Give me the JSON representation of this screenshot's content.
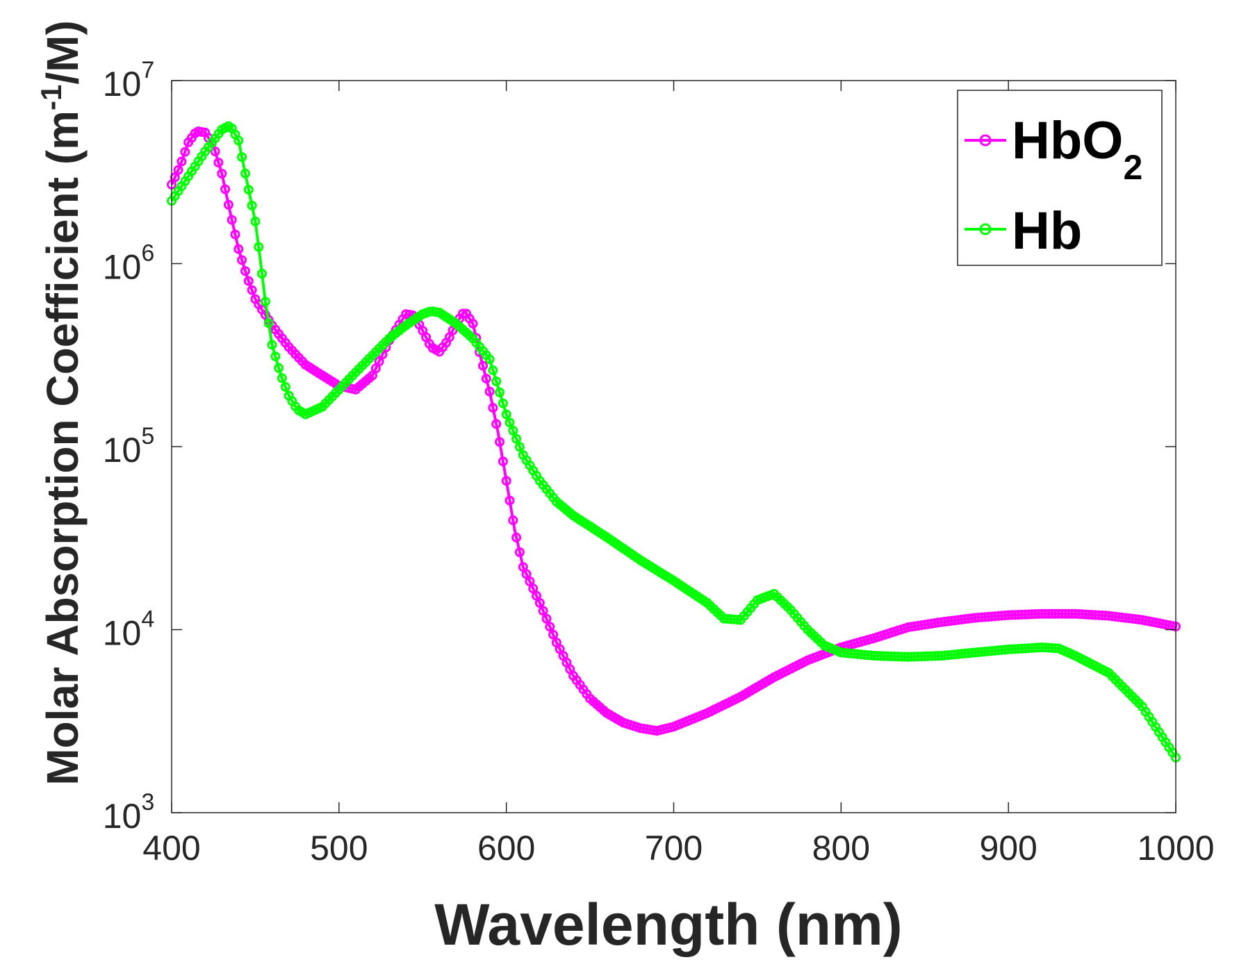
{
  "chart_data": {
    "type": "line",
    "title": "",
    "xlabel": "Wavelength (nm)",
    "ylabel": "Molar Absorption Coefficient (m-1/M)",
    "ylabel_parts": {
      "prefix": "Molar Absorption Coefficient (m",
      "superscript": "-1",
      "suffix": "/M)"
    },
    "x_scale": "linear",
    "y_scale": "log",
    "xlim": [
      400,
      1000
    ],
    "ylim": [
      1000,
      10000000
    ],
    "x_ticks": [
      400,
      500,
      600,
      700,
      800,
      900,
      1000
    ],
    "x_tick_labels": [
      "400",
      "500",
      "600",
      "700",
      "800",
      "900",
      "1000"
    ],
    "y_ticks": [
      1000,
      10000,
      100000,
      1000000,
      10000000
    ],
    "y_tick_labels": [
      {
        "base": "10",
        "exp": "3"
      },
      {
        "base": "10",
        "exp": "4"
      },
      {
        "base": "10",
        "exp": "5"
      },
      {
        "base": "10",
        "exp": "6"
      },
      {
        "base": "10",
        "exp": "7"
      }
    ],
    "grid": false,
    "legend_position": "top-right",
    "series": [
      {
        "name": "HbO2",
        "legend": {
          "main": "HbO",
          "subscript": "2"
        },
        "color": "#ff00ff",
        "marker": "circle",
        "points": [
          [
            400,
            2700000
          ],
          [
            405,
            3400000
          ],
          [
            410,
            4600000
          ],
          [
            415,
            5300000
          ],
          [
            420,
            5200000
          ],
          [
            425,
            4400000
          ],
          [
            430,
            3100000
          ],
          [
            435,
            1900000
          ],
          [
            440,
            1200000
          ],
          [
            445,
            850000
          ],
          [
            450,
            640000
          ],
          [
            460,
            460000
          ],
          [
            470,
            350000
          ],
          [
            480,
            280000
          ],
          [
            490,
            245000
          ],
          [
            500,
            215000
          ],
          [
            510,
            205000
          ],
          [
            520,
            245000
          ],
          [
            530,
            380000
          ],
          [
            540,
            530000
          ],
          [
            545,
            520000
          ],
          [
            550,
            430000
          ],
          [
            555,
            350000
          ],
          [
            560,
            330000
          ],
          [
            565,
            380000
          ],
          [
            570,
            470000
          ],
          [
            575,
            550000
          ],
          [
            580,
            470000
          ],
          [
            585,
            300000
          ],
          [
            590,
            200000
          ],
          [
            595,
            120000
          ],
          [
            600,
            65000
          ],
          [
            605,
            35000
          ],
          [
            610,
            22000
          ],
          [
            620,
            14000
          ],
          [
            630,
            8500
          ],
          [
            640,
            5600
          ],
          [
            650,
            4200
          ],
          [
            660,
            3500
          ],
          [
            670,
            3100
          ],
          [
            680,
            2900
          ],
          [
            690,
            2800
          ],
          [
            700,
            2950
          ],
          [
            720,
            3500
          ],
          [
            740,
            4300
          ],
          [
            760,
            5500
          ],
          [
            780,
            6800
          ],
          [
            800,
            8000
          ],
          [
            820,
            9000
          ],
          [
            840,
            10300
          ],
          [
            860,
            11000
          ],
          [
            880,
            11600
          ],
          [
            900,
            12000
          ],
          [
            920,
            12200
          ],
          [
            940,
            12200
          ],
          [
            960,
            11900
          ],
          [
            980,
            11300
          ],
          [
            1000,
            10400
          ]
        ]
      },
      {
        "name": "Hb",
        "legend": {
          "main": "Hb",
          "subscript": ""
        },
        "color": "#00ff00",
        "marker": "circle",
        "points": [
          [
            400,
            2200000
          ],
          [
            410,
            3000000
          ],
          [
            420,
            4100000
          ],
          [
            430,
            5400000
          ],
          [
            435,
            5700000
          ],
          [
            440,
            4700000
          ],
          [
            445,
            2800000
          ],
          [
            450,
            1700000
          ],
          [
            453,
            1050000
          ],
          [
            456,
            620000
          ],
          [
            460,
            360000
          ],
          [
            465,
            250000
          ],
          [
            470,
            190000
          ],
          [
            475,
            160000
          ],
          [
            480,
            150000
          ],
          [
            490,
            165000
          ],
          [
            500,
            205000
          ],
          [
            510,
            255000
          ],
          [
            520,
            315000
          ],
          [
            530,
            390000
          ],
          [
            540,
            460000
          ],
          [
            550,
            530000
          ],
          [
            555,
            550000
          ],
          [
            560,
            540000
          ],
          [
            570,
            470000
          ],
          [
            580,
            390000
          ],
          [
            590,
            300000
          ],
          [
            600,
            150000
          ],
          [
            610,
            90000
          ],
          [
            620,
            65000
          ],
          [
            630,
            50000
          ],
          [
            640,
            42000
          ],
          [
            660,
            32000
          ],
          [
            680,
            24000
          ],
          [
            700,
            18500
          ],
          [
            720,
            14000
          ],
          [
            730,
            11500
          ],
          [
            740,
            11300
          ],
          [
            750,
            14500
          ],
          [
            760,
            15700
          ],
          [
            770,
            12800
          ],
          [
            780,
            10000
          ],
          [
            790,
            8200
          ],
          [
            800,
            7500
          ],
          [
            820,
            7200
          ],
          [
            840,
            7100
          ],
          [
            860,
            7200
          ],
          [
            880,
            7500
          ],
          [
            900,
            7800
          ],
          [
            920,
            8000
          ],
          [
            930,
            7900
          ],
          [
            940,
            7200
          ],
          [
            960,
            5800
          ],
          [
            980,
            3800
          ],
          [
            1000,
            2000
          ]
        ]
      }
    ]
  }
}
